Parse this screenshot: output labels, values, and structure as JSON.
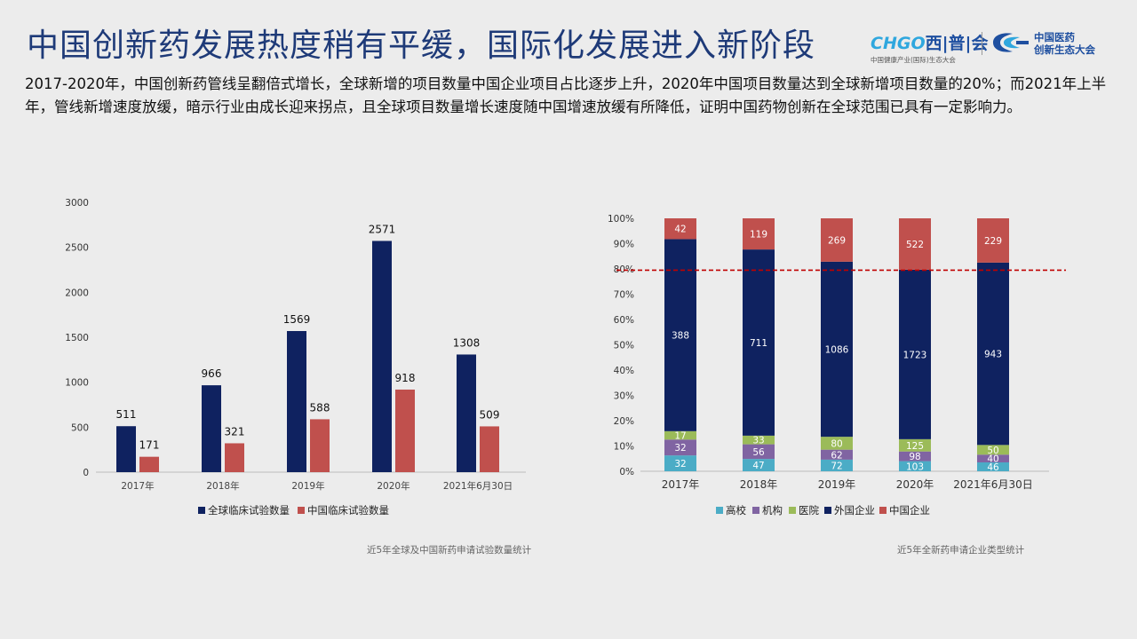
{
  "title": "中国创新药发展热度稍有平缓，国际化发展进入新阶段",
  "intro": "2017-2020年，中国创新药管线呈翻倍式增长，全球新增的项目数量中国企业项目占比逐步上升，2020年中国项目数量达到全球新增项目数量的20%；而2021年上半年，管线新增速度放缓，暗示行业由成长迎来拐点，且全球项目数量增长速度随中国增速放缓有所降低，证明中国药物创新在全球范围已具有一定影响力。",
  "logos": {
    "logo1_main_a": "CHGO",
    "logo1_main_b": "西|普|会",
    "logo1_sub": "中国健康产业(国际)生态大会",
    "logo2_line1": "中国医药",
    "logo2_line2": "创新生态大会"
  },
  "colors": {
    "navy": "#0f2260",
    "red": "#c0504d",
    "teal": "#4bacc6",
    "purple": "#8064a2",
    "green": "#9bbb59",
    "dashed_line": "#c00000"
  },
  "captions": {
    "left": "近5年全球及中国新药申请试验数量统计",
    "right": "近5年全新药申请企业类型统计"
  },
  "chart_data": [
    {
      "type": "bar",
      "title": "近5年全球及中国新药申请试验数量统计",
      "categories": [
        "2017年",
        "2018年",
        "2019年",
        "2020年",
        "2021年6月30日"
      ],
      "series": [
        {
          "name": "全球临床试验数量",
          "values": [
            511,
            966,
            1569,
            2571,
            1308
          ]
        },
        {
          "name": "中国临床试验数量",
          "values": [
            171,
            321,
            588,
            918,
            509
          ]
        }
      ],
      "ylim": [
        0,
        3000
      ],
      "yticks": [
        0,
        500,
        1000,
        1500,
        2000,
        2500,
        3000
      ],
      "legend": "bottom"
    },
    {
      "type": "bar",
      "stacked": "percent",
      "title": "近5年全新药申请企业类型统计",
      "categories": [
        "2017年",
        "2018年",
        "2019年",
        "2020年",
        "2021年6月30日"
      ],
      "series": [
        {
          "name": "高校",
          "values": [
            32,
            47,
            72,
            103,
            46
          ]
        },
        {
          "name": "机构",
          "values": [
            32,
            56,
            62,
            98,
            40
          ]
        },
        {
          "name": "医院",
          "values": [
            17,
            33,
            80,
            125,
            50
          ]
        },
        {
          "name": "外国企业",
          "values": [
            388,
            711,
            1086,
            1723,
            943
          ]
        },
        {
          "name": "中国企业",
          "values": [
            42,
            119,
            269,
            522,
            229
          ]
        }
      ],
      "ylim": [
        0,
        100
      ],
      "yticks": [
        "0%",
        "10%",
        "20%",
        "30%",
        "40%",
        "50%",
        "60%",
        "70%",
        "80%",
        "90%",
        "100%"
      ],
      "reference_line": 79.5,
      "legend": "bottom"
    }
  ]
}
